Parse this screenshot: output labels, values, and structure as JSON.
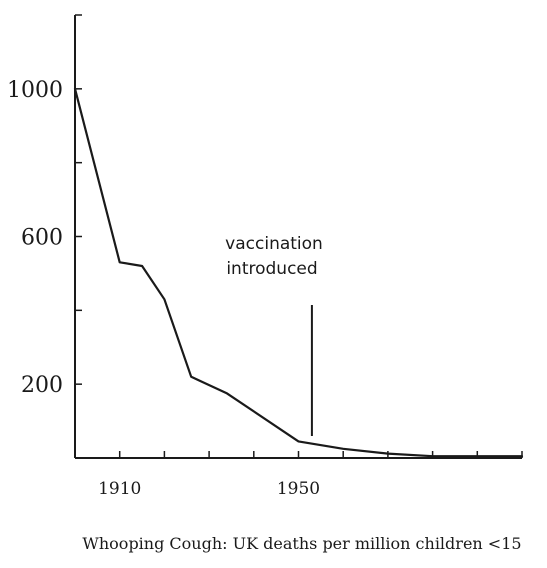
{
  "chart_data": {
    "type": "line",
    "caption": "Whooping Cough: UK deaths per million children <15",
    "annotation": {
      "text_line1": "vaccination",
      "text_line2": "introduced",
      "x": 1953
    },
    "xlim": [
      1900,
      2000
    ],
    "ylim": [
      0,
      1200
    ],
    "x_tick_labels": [
      {
        "value": 1910,
        "label": "1910"
      },
      {
        "value": 1950,
        "label": "1950"
      }
    ],
    "x_minor_ticks": [
      1900,
      1910,
      1920,
      1930,
      1940,
      1950,
      1960,
      1970,
      1980,
      1990,
      2000
    ],
    "y_tick_labels": [
      {
        "value": 200,
        "label": "200"
      },
      {
        "value": 600,
        "label": "600"
      },
      {
        "value": 1000,
        "label": "1000"
      }
    ],
    "y_minor_ticks": [
      200,
      400,
      600,
      800,
      1000,
      1200
    ],
    "series": [
      {
        "x": [
          1900,
          1910,
          1915,
          1920,
          1926,
          1934,
          1950,
          1960,
          1970,
          1980,
          1990,
          2000
        ],
        "y": [
          1000,
          530,
          520,
          430,
          220,
          175,
          45,
          25,
          12,
          5,
          5,
          5
        ]
      }
    ],
    "grid": false,
    "line_color": "#1a1a1a"
  }
}
